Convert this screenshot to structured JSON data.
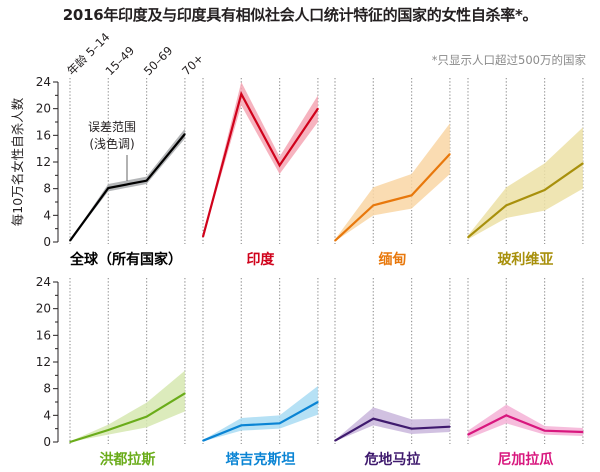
{
  "title": "2016年印度及与印度具有相似社会人口统计特征的国家的女性自杀率*。",
  "footnote": "*只显示人口超过500万的国家",
  "chart_data": {
    "type": "line",
    "title": "2016年印度及与印度具有相似社会人口统计特征的国家的女性自杀率*。",
    "ylabel": "每10万名女性自杀人数",
    "xlabel": "",
    "ylim": [
      0,
      24
    ],
    "yticks": [
      "0",
      "4",
      "8",
      "12",
      "16",
      "20",
      "24"
    ],
    "categories": [
      "年龄 5–14",
      "15–49",
      "50–69",
      "70+"
    ],
    "annotation": {
      "line1": "误差范围",
      "line2": "(浅色调)"
    },
    "grid": "vertical dotted lines at each age group",
    "panels": [
      {
        "name": "全球（所有国家）",
        "color": "#000000",
        "band_color": "#a7a9ac",
        "values": [
          0.2,
          8.1,
          9.2,
          16.2
        ],
        "lower": [
          0.1,
          7.6,
          8.7,
          15.5
        ],
        "upper": [
          0.3,
          8.7,
          9.8,
          17.0
        ]
      },
      {
        "name": "印度",
        "color": "#d0021b",
        "band_color": "#f4a6b4",
        "values": [
          0.8,
          22.2,
          11.5,
          20.0
        ],
        "lower": [
          0.6,
          20.5,
          10.2,
          18.0
        ],
        "upper": [
          1.0,
          24.0,
          12.8,
          22.0
        ]
      },
      {
        "name": "缅甸",
        "color": "#e8780c",
        "band_color": "#f9d6a4",
        "values": [
          0.2,
          5.5,
          7.0,
          13.2
        ],
        "lower": [
          0.1,
          4.0,
          5.0,
          10.2
        ],
        "upper": [
          0.4,
          8.2,
          10.2,
          17.8
        ]
      },
      {
        "name": "玻利维亚",
        "color": "#a8900c",
        "band_color": "#ece1a6",
        "values": [
          0.7,
          5.5,
          7.8,
          11.8
        ],
        "lower": [
          0.4,
          3.6,
          4.7,
          8.0
        ],
        "upper": [
          1.0,
          8.2,
          11.8,
          17.2
        ]
      },
      {
        "name": "洪都拉斯",
        "color": "#6aac1a",
        "band_color": "#d6e8b0",
        "values": [
          0.0,
          1.8,
          3.8,
          7.3
        ],
        "lower": [
          0.0,
          1.1,
          2.2,
          4.6
        ],
        "upper": [
          0.1,
          2.6,
          5.9,
          10.7
        ]
      },
      {
        "name": "塔吉克斯坦",
        "color": "#0a84d4",
        "band_color": "#a9dcf3",
        "values": [
          0.2,
          2.5,
          2.8,
          6.0
        ],
        "lower": [
          0.1,
          1.7,
          2.0,
          4.1
        ],
        "upper": [
          0.3,
          3.6,
          4.0,
          8.4
        ]
      },
      {
        "name": "危地马拉",
        "color": "#3f1a6e",
        "band_color": "#c9b6dc",
        "values": [
          0.2,
          3.5,
          2.0,
          2.3
        ],
        "lower": [
          0.1,
          2.5,
          1.2,
          1.5
        ],
        "upper": [
          0.3,
          5.2,
          3.4,
          3.5
        ]
      },
      {
        "name": "尼加拉瓜",
        "color": "#d8177e",
        "band_color": "#f5b2d6",
        "values": [
          1.1,
          4.0,
          1.7,
          1.5
        ],
        "lower": [
          0.5,
          2.8,
          1.1,
          0.9
        ],
        "upper": [
          1.7,
          5.6,
          2.4,
          2.1
        ]
      }
    ]
  }
}
